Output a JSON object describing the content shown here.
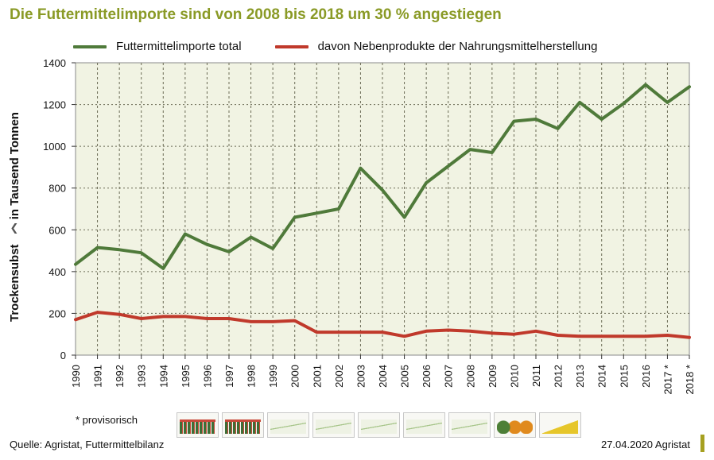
{
  "title": "Die Futtermittelimporte sind von 2008 bis 2018 um 30 % angestiegen",
  "footnote": "* provisorisch",
  "source": "Quelle: Agristat, Futtermittelbilanz",
  "date_credit": "27.04.2020 Agristat",
  "colors": {
    "title": "#8a9a26",
    "plot_bg": "#f1f3e3",
    "total": "#4f7a3a",
    "byproduct": "#c0392b"
  },
  "thumbnails": [
    {
      "name": "thumb-stacked-red-green",
      "style": "bars-redgreen"
    },
    {
      "name": "thumb-stacked-red-green-2",
      "style": "bars-redgreen"
    },
    {
      "name": "thumb-line-1",
      "style": "line"
    },
    {
      "name": "thumb-line-2",
      "style": "line"
    },
    {
      "name": "thumb-line-3",
      "style": "line"
    },
    {
      "name": "thumb-line-4",
      "style": "line"
    },
    {
      "name": "thumb-line-5",
      "style": "line"
    },
    {
      "name": "thumb-pies",
      "style": "pies"
    },
    {
      "name": "thumb-yellow-bars",
      "style": "bars-yellow"
    }
  ],
  "chart_data": {
    "type": "line",
    "ylabel": "Trockensubst...: in Tausend Tonnen",
    "ylabel_start": "Trockensubst",
    "ylabel_end": ": in Tausend Tonnen",
    "ylim": [
      0,
      1400
    ],
    "yticks": [
      0,
      200,
      400,
      600,
      800,
      1000,
      1200,
      1400
    ],
    "grid": true,
    "legend_position": "top",
    "categories": [
      "1990",
      "1991",
      "1992",
      "1993",
      "1994",
      "1995",
      "1996",
      "1997",
      "1998",
      "1999",
      "2000",
      "2001",
      "2002",
      "2003",
      "2004",
      "2005",
      "2006",
      "2007",
      "2008",
      "2009",
      "2010",
      "2011",
      "2012",
      "2013",
      "2014",
      "2015",
      "2016",
      "2017 *",
      "2018 *"
    ],
    "series": [
      {
        "name": "Futtermittelimporte total",
        "color": "#4f7a3a",
        "values": [
          435,
          515,
          505,
          490,
          415,
          580,
          530,
          495,
          565,
          510,
          660,
          680,
          700,
          895,
          790,
          660,
          825,
          905,
          985,
          970,
          1120,
          1130,
          1085,
          1210,
          1130,
          1205,
          1295,
          1210,
          1285
        ]
      },
      {
        "name": "davon Nebenprodukte der Nahrungsmittelherstellung",
        "color": "#c0392b",
        "values": [
          170,
          205,
          195,
          175,
          185,
          185,
          175,
          175,
          160,
          160,
          165,
          110,
          110,
          110,
          110,
          90,
          115,
          120,
          115,
          105,
          100,
          115,
          95,
          90,
          90,
          90,
          90,
          95,
          85
        ]
      }
    ]
  }
}
